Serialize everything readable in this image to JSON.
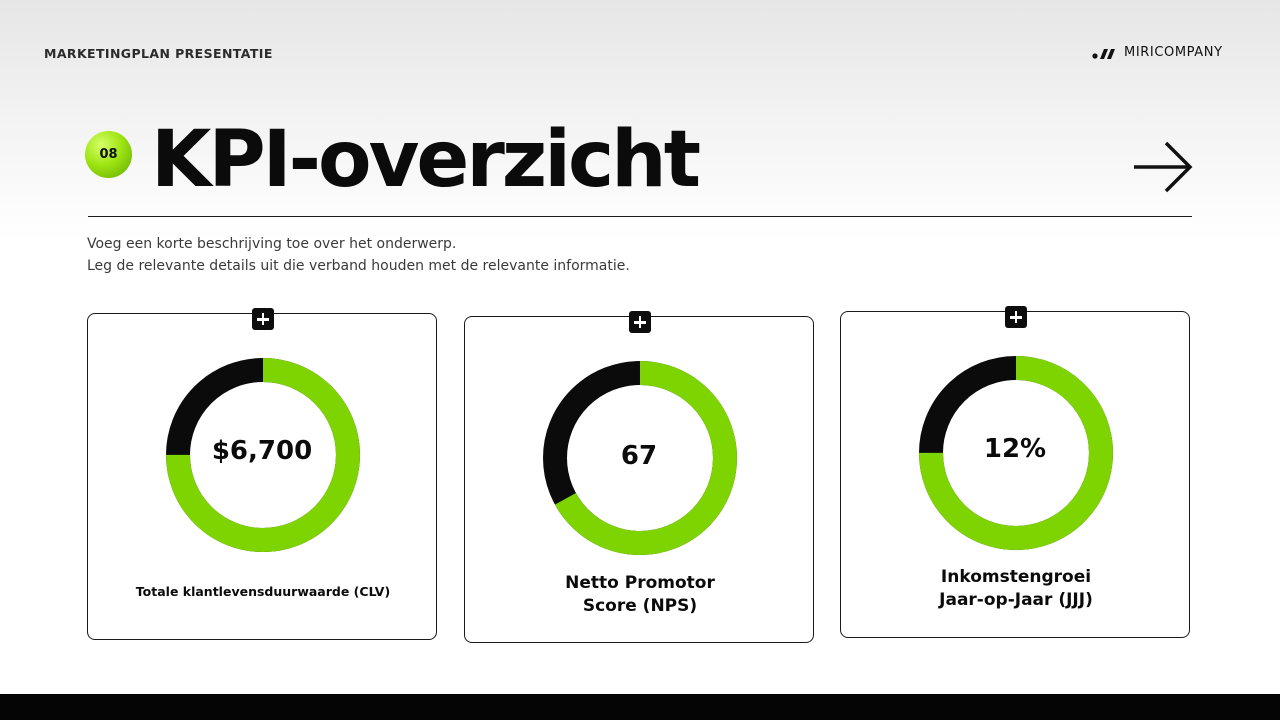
{
  "header": {
    "presentation_title": "MARKETINGPLAN PRESENTATIE",
    "brand_name": "MIRICOMPANY"
  },
  "slide": {
    "number": "08",
    "title": "KPI-overzicht",
    "description_lines": [
      "Voeg een korte beschrijving toe over het onderwerp.",
      "Leg de relevante details uit die verband houden met de relevante informatie."
    ]
  },
  "colors": {
    "accent": "#7ed400",
    "dark": "#0b0b0b"
  },
  "icons": {
    "next": "arrow-right-icon",
    "add": "plus-icon",
    "brand": "brand-logo-icon"
  },
  "kpis": [
    {
      "value": "$6,700",
      "label": [
        "Totale klantlevensduurwaarde (CLV)"
      ],
      "fill_percent": 75
    },
    {
      "value": "67",
      "label": [
        "Netto Promotor",
        "Score (NPS)"
      ],
      "fill_percent": 67
    },
    {
      "value": "12%",
      "label": [
        "Inkomstengroei",
        "Jaar-op-Jaar (JJJ)"
      ],
      "fill_percent": 75
    }
  ]
}
